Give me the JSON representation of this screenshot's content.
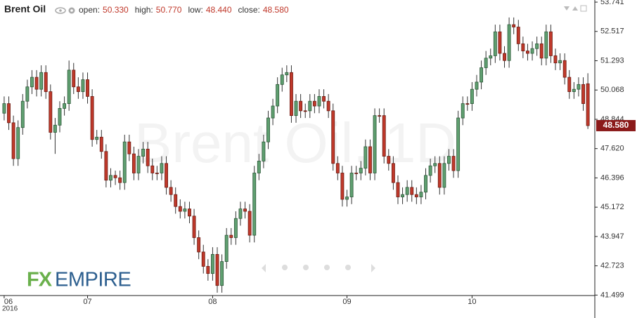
{
  "chart_data": {
    "type": "candlestick",
    "title": "Brent Oil",
    "watermark": "Brent Oil, 1D",
    "header_stats": [
      {
        "label": "open:",
        "value": "50.330"
      },
      {
        "label": "high:",
        "value": "50.770"
      },
      {
        "label": "low:",
        "value": "48.440"
      },
      {
        "label": "close:",
        "value": "48.580"
      }
    ],
    "last_price": "48.580",
    "logo": [
      "FX",
      "EMPIRE"
    ],
    "year": "2016",
    "up_color": "#5f9f70",
    "down_color": "#c0392b",
    "ylim": [
      41.48,
      53.83
    ],
    "yticks": [
      41.499,
      42.723,
      43.947,
      45.172,
      46.396,
      {
        "value": 47.62,
        "label": "47.620"
      },
      48.844,
      50.068,
      51.293,
      52.517,
      53.741
    ],
    "xlim": [
      -0.9,
      127.5
    ],
    "xticks": [
      {
        "value": 0,
        "label": "06"
      },
      {
        "value": 18,
        "label": "07"
      },
      {
        "value": 45,
        "label": "08"
      },
      {
        "value": 74,
        "label": "09"
      },
      {
        "value": 101,
        "label": "10"
      }
    ],
    "ohlc": [
      [
        49.1,
        49.8,
        48.8,
        49.5
      ],
      [
        49.5,
        49.8,
        48.4,
        48.7
      ],
      [
        48.7,
        49.0,
        46.9,
        47.2
      ],
      [
        47.2,
        48.8,
        46.9,
        48.5
      ],
      [
        48.5,
        49.9,
        48.2,
        49.6
      ],
      [
        49.6,
        50.5,
        49.3,
        50.2
      ],
      [
        50.2,
        50.9,
        49.9,
        50.6
      ],
      [
        50.6,
        50.9,
        49.8,
        50.1
      ],
      [
        50.1,
        51.1,
        49.8,
        50.8
      ],
      [
        50.8,
        51.1,
        49.7,
        50.0
      ],
      [
        50.0,
        50.3,
        48.0,
        48.3
      ],
      [
        48.3,
        48.9,
        47.4,
        48.6
      ],
      [
        48.6,
        49.6,
        48.3,
        49.3
      ],
      [
        49.3,
        49.8,
        49.0,
        49.5
      ],
      [
        49.5,
        51.3,
        49.2,
        50.9
      ],
      [
        50.9,
        51.2,
        49.9,
        50.2
      ],
      [
        50.2,
        50.6,
        49.7,
        50.0
      ],
      [
        50.0,
        50.8,
        49.7,
        50.5
      ],
      [
        50.5,
        50.8,
        49.5,
        49.8
      ],
      [
        49.8,
        50.1,
        47.7,
        48.0
      ],
      [
        48.0,
        48.4,
        47.8,
        48.1
      ],
      [
        48.1,
        48.4,
        47.2,
        47.5
      ],
      [
        47.5,
        47.8,
        46.0,
        46.3
      ],
      [
        46.3,
        46.8,
        46.0,
        46.5
      ],
      [
        46.5,
        46.7,
        46.1,
        46.4
      ],
      [
        46.4,
        46.7,
        45.9,
        46.2
      ],
      [
        46.2,
        48.2,
        45.9,
        47.9
      ],
      [
        47.9,
        48.2,
        47.1,
        47.4
      ],
      [
        47.4,
        47.7,
        46.3,
        46.6
      ],
      [
        46.6,
        47.6,
        46.3,
        47.3
      ],
      [
        47.3,
        47.9,
        47.0,
        47.6
      ],
      [
        47.6,
        47.9,
        46.6,
        46.9
      ],
      [
        46.9,
        47.2,
        46.3,
        46.6
      ],
      [
        46.6,
        46.9,
        46.3,
        46.6
      ],
      [
        46.6,
        47.3,
        46.3,
        47.0
      ],
      [
        47.0,
        47.3,
        45.7,
        46.0
      ],
      [
        46.0,
        46.3,
        45.4,
        45.7
      ],
      [
        45.7,
        46.0,
        44.9,
        45.2
      ],
      [
        45.2,
        45.5,
        44.7,
        45.0
      ],
      [
        45.0,
        45.4,
        44.7,
        45.1
      ],
      [
        45.1,
        45.4,
        44.5,
        44.8
      ],
      [
        44.8,
        45.1,
        43.6,
        43.9
      ],
      [
        43.9,
        44.2,
        43.0,
        43.3
      ],
      [
        43.3,
        43.6,
        42.4,
        42.7
      ],
      [
        42.7,
        43.0,
        42.1,
        42.4
      ],
      [
        42.4,
        43.5,
        42.1,
        43.2
      ],
      [
        43.2,
        43.5,
        41.6,
        41.9
      ],
      [
        41.9,
        43.2,
        41.6,
        42.9
      ],
      [
        42.9,
        44.3,
        42.6,
        44.0
      ],
      [
        44.0,
        44.3,
        43.6,
        43.9
      ],
      [
        43.9,
        45.0,
        43.6,
        44.7
      ],
      [
        44.7,
        45.4,
        44.4,
        45.1
      ],
      [
        45.1,
        45.4,
        44.7,
        45.0
      ],
      [
        45.0,
        45.3,
        43.7,
        44.0
      ],
      [
        44.0,
        46.9,
        43.7,
        46.6
      ],
      [
        46.6,
        47.4,
        46.3,
        47.1
      ],
      [
        47.1,
        48.2,
        46.8,
        47.9
      ],
      [
        47.9,
        49.2,
        47.6,
        48.9
      ],
      [
        48.9,
        49.7,
        48.6,
        49.4
      ],
      [
        49.4,
        50.6,
        49.1,
        50.3
      ],
      [
        50.3,
        51.0,
        50.0,
        50.7
      ],
      [
        50.7,
        51.1,
        50.4,
        50.8
      ],
      [
        50.8,
        51.1,
        48.7,
        49.0
      ],
      [
        49.0,
        49.9,
        48.7,
        49.6
      ],
      [
        49.6,
        49.9,
        48.9,
        49.2
      ],
      [
        49.2,
        49.5,
        48.9,
        49.2
      ],
      [
        49.2,
        49.9,
        48.9,
        49.6
      ],
      [
        49.6,
        49.9,
        49.1,
        49.4
      ],
      [
        49.4,
        50.1,
        49.1,
        49.8
      ],
      [
        49.8,
        50.1,
        49.3,
        49.6
      ],
      [
        49.6,
        49.9,
        48.9,
        49.2
      ],
      [
        49.2,
        49.5,
        46.7,
        47.0
      ],
      [
        47.0,
        47.3,
        46.3,
        46.6
      ],
      [
        46.6,
        46.9,
        45.2,
        45.5
      ],
      [
        45.5,
        45.9,
        45.2,
        45.6
      ],
      [
        45.6,
        46.9,
        45.3,
        46.6
      ],
      [
        46.6,
        46.9,
        46.3,
        46.6
      ],
      [
        46.6,
        47.1,
        46.3,
        46.8
      ],
      [
        46.8,
        48.0,
        46.5,
        47.7
      ],
      [
        47.7,
        48.0,
        46.3,
        46.6
      ],
      [
        46.6,
        49.3,
        46.3,
        49.0
      ],
      [
        49.0,
        49.3,
        48.7,
        49.0
      ],
      [
        49.0,
        49.3,
        47.0,
        47.3
      ],
      [
        47.3,
        47.6,
        46.7,
        47.0
      ],
      [
        47.0,
        47.3,
        45.9,
        46.2
      ],
      [
        46.2,
        46.5,
        45.3,
        45.6
      ],
      [
        45.6,
        46.0,
        45.3,
        45.7
      ],
      [
        45.7,
        46.3,
        45.4,
        46.0
      ],
      [
        46.0,
        46.3,
        45.4,
        45.7
      ],
      [
        45.7,
        46.0,
        45.3,
        45.6
      ],
      [
        45.6,
        46.1,
        45.3,
        45.8
      ],
      [
        45.8,
        46.8,
        45.5,
        46.5
      ],
      [
        46.5,
        47.2,
        46.2,
        46.9
      ],
      [
        46.9,
        47.3,
        46.6,
        47.0
      ],
      [
        47.0,
        47.3,
        45.7,
        46.0
      ],
      [
        46.0,
        47.3,
        45.7,
        47.0
      ],
      [
        47.0,
        47.6,
        46.7,
        47.3
      ],
      [
        47.3,
        47.6,
        46.4,
        46.7
      ],
      [
        46.7,
        49.2,
        46.4,
        48.9
      ],
      [
        48.9,
        49.8,
        48.6,
        49.5
      ],
      [
        49.5,
        49.8,
        49.2,
        49.5
      ],
      [
        49.5,
        50.4,
        49.2,
        50.1
      ],
      [
        50.1,
        50.7,
        49.8,
        50.4
      ],
      [
        50.4,
        51.3,
        50.1,
        51.0
      ],
      [
        51.0,
        51.7,
        50.7,
        51.4
      ],
      [
        51.4,
        51.8,
        51.1,
        51.5
      ],
      [
        51.5,
        52.8,
        51.2,
        52.5
      ],
      [
        52.5,
        52.8,
        51.3,
        51.6
      ],
      [
        51.6,
        51.9,
        51.0,
        51.3
      ],
      [
        51.3,
        53.1,
        51.0,
        52.8
      ],
      [
        52.8,
        53.1,
        52.4,
        52.7
      ],
      [
        52.7,
        53.0,
        51.7,
        52.0
      ],
      [
        52.0,
        52.3,
        51.4,
        51.7
      ],
      [
        51.7,
        52.0,
        51.3,
        51.6
      ],
      [
        51.6,
        52.1,
        51.3,
        51.8
      ],
      [
        51.8,
        52.3,
        51.5,
        52.0
      ],
      [
        52.0,
        52.3,
        51.1,
        51.4
      ],
      [
        51.4,
        52.8,
        51.1,
        52.5
      ],
      [
        52.5,
        52.8,
        51.2,
        51.5
      ],
      [
        51.5,
        51.8,
        50.9,
        51.2
      ],
      [
        51.2,
        51.6,
        50.9,
        51.3
      ],
      [
        51.3,
        51.6,
        50.3,
        50.6
      ],
      [
        50.6,
        50.9,
        49.7,
        50.0
      ],
      [
        50.0,
        50.4,
        49.7,
        50.1
      ],
      [
        50.1,
        50.6,
        49.8,
        50.3
      ],
      [
        50.3,
        50.6,
        49.2,
        49.5
      ],
      [
        50.33,
        50.77,
        48.44,
        48.58
      ]
    ]
  }
}
